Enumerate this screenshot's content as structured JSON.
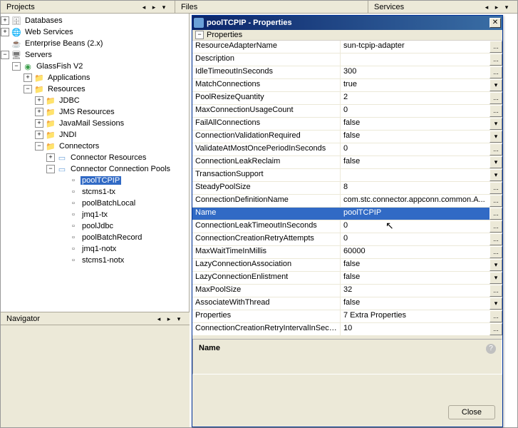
{
  "tabs": {
    "projects": "Projects",
    "files": "Files",
    "services": "Services"
  },
  "tree": {
    "databases": "Databases",
    "web_services": "Web Services",
    "enterprise_beans": "Enterprise Beans (2.x)",
    "servers": "Servers",
    "glassfish": "GlassFish V2",
    "applications": "Applications",
    "resources": "Resources",
    "jdbc": "JDBC",
    "jms_resources": "JMS Resources",
    "javamail_sessions": "JavaMail Sessions",
    "jndi": "JNDI",
    "connectors": "Connectors",
    "connector_resources": "Connector Resources",
    "connector_connection_pools": "Connector Connection Pools",
    "pools": {
      "poolTCPIP": "poolTCPIP",
      "stcms1_tx": "stcms1-tx",
      "poolBatchLocal": "poolBatchLocal",
      "jmq1_tx": "jmq1-tx",
      "poolJdbc": "poolJdbc",
      "poolBatchRecord": "poolBatchRecord",
      "jmq1_notx": "jmq1-notx",
      "stcms1_notx": "stcms1-notx"
    }
  },
  "navigator": {
    "title": "Navigator"
  },
  "dialog": {
    "title": "poolTCPIP - Properties",
    "section": "Properties",
    "close_label": "Close",
    "desc_title": "Name",
    "props": [
      {
        "name": "ResourceAdapterName",
        "value": "sun-tcpip-adapter",
        "btn": "..."
      },
      {
        "name": "Description",
        "value": "",
        "btn": "..."
      },
      {
        "name": "IdleTimeoutInSeconds",
        "value": "300",
        "btn": "..."
      },
      {
        "name": "MatchConnections",
        "value": "true",
        "btn": "▾"
      },
      {
        "name": "PoolResizeQuantity",
        "value": "2",
        "btn": "..."
      },
      {
        "name": "MaxConnectionUsageCount",
        "value": "0",
        "btn": "..."
      },
      {
        "name": "FailAllConnections",
        "value": "false",
        "btn": "▾"
      },
      {
        "name": "ConnectionValidationRequired",
        "value": "false",
        "btn": "▾"
      },
      {
        "name": "ValidateAtMostOncePeriodInSeconds",
        "value": "0",
        "btn": "..."
      },
      {
        "name": "ConnectionLeakReclaim",
        "value": "false",
        "btn": "▾"
      },
      {
        "name": "TransactionSupport",
        "value": "",
        "btn": "▾"
      },
      {
        "name": "SteadyPoolSize",
        "value": "8",
        "btn": "..."
      },
      {
        "name": "ConnectionDefinitionName",
        "value": "com.stc.connector.appconn.common.A...",
        "btn": "..."
      },
      {
        "name": "Name",
        "value": "poolTCPIP",
        "btn": "...",
        "selected": true
      },
      {
        "name": "ConnectionLeakTimeoutInSeconds",
        "value": "0",
        "btn": "..."
      },
      {
        "name": "ConnectionCreationRetryAttempts",
        "value": "0",
        "btn": "..."
      },
      {
        "name": "MaxWaitTimeInMillis",
        "value": "60000",
        "btn": "..."
      },
      {
        "name": "LazyConnectionAssociation",
        "value": "false",
        "btn": "▾"
      },
      {
        "name": "LazyConnectionEnlistment",
        "value": "false",
        "btn": "▾"
      },
      {
        "name": "MaxPoolSize",
        "value": "32",
        "btn": "..."
      },
      {
        "name": "AssociateWithThread",
        "value": "false",
        "btn": "▾"
      },
      {
        "name": "Properties",
        "value": "7 Extra Properties",
        "btn": "..."
      },
      {
        "name": "ConnectionCreationRetryIntervalInSeconds",
        "value": "10",
        "btn": "..."
      }
    ]
  },
  "colors": {
    "selection": "#316ac5",
    "panel_bg": "#ece9d8",
    "titlebar_start": "#0a246a",
    "titlebar_end": "#3a6ea5"
  }
}
